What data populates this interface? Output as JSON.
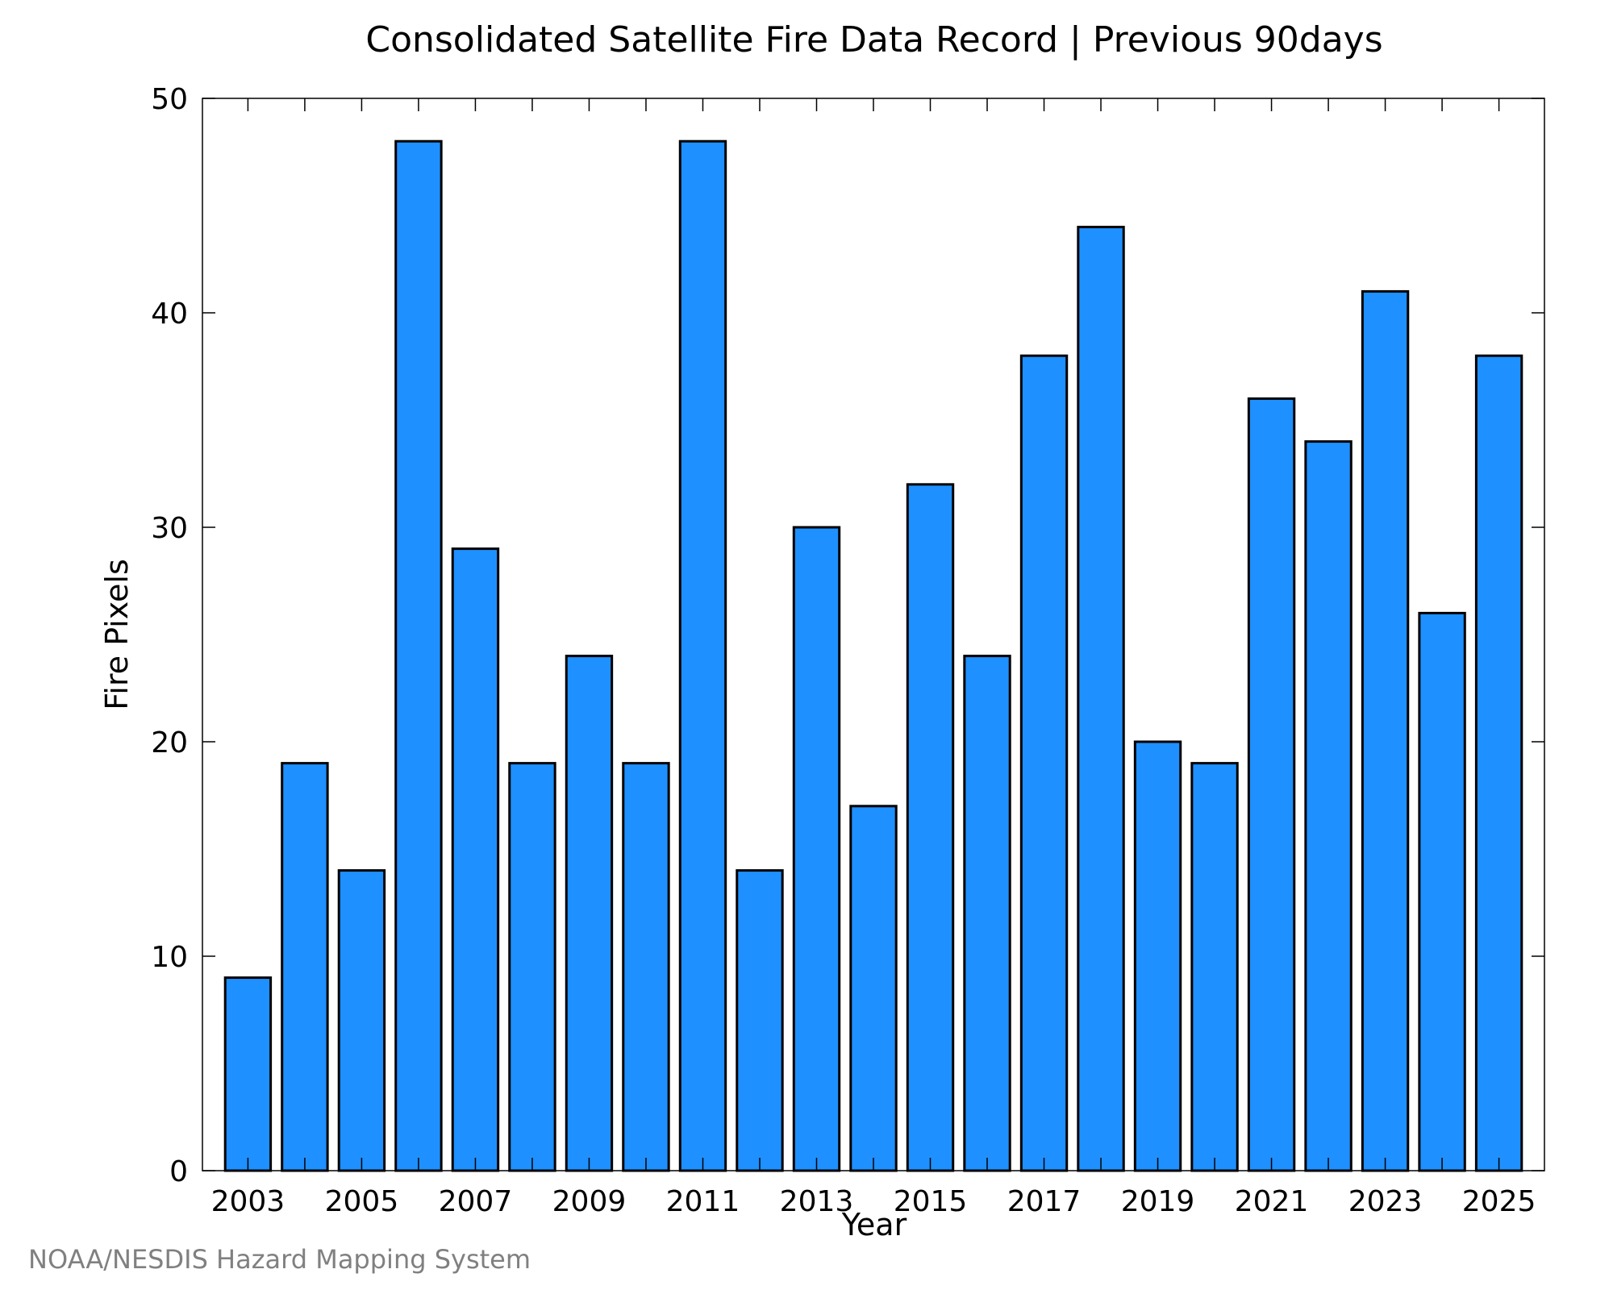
{
  "chart_data": {
    "type": "bar",
    "title": "Consolidated Satellite Fire Data Record | Previous 90days",
    "xlabel": "Year",
    "ylabel": "Fire Pixels",
    "categories": [
      "2003",
      "2004",
      "2005",
      "2006",
      "2007",
      "2008",
      "2009",
      "2010",
      "2011",
      "2012",
      "2013",
      "2014",
      "2015",
      "2016",
      "2017",
      "2018",
      "2019",
      "2020",
      "2021",
      "2022",
      "2023",
      "2024",
      "2025"
    ],
    "values": [
      9,
      19,
      14,
      48,
      29,
      19,
      24,
      19,
      48,
      14,
      30,
      17,
      32,
      24,
      38,
      44,
      20,
      19,
      36,
      34,
      41,
      26,
      38
    ],
    "x_tick_labels": [
      "2003",
      "2005",
      "2007",
      "2009",
      "2011",
      "2013",
      "2015",
      "2017",
      "2019",
      "2021",
      "2023",
      "2025"
    ],
    "y_ticks": [
      0,
      10,
      20,
      30,
      40,
      50
    ],
    "ylim": [
      0,
      50
    ],
    "grid": false,
    "bar_color": "#1e90ff",
    "bar_edge_color": "#000000"
  },
  "credit": "NOAA/NESDIS Hazard Mapping System"
}
